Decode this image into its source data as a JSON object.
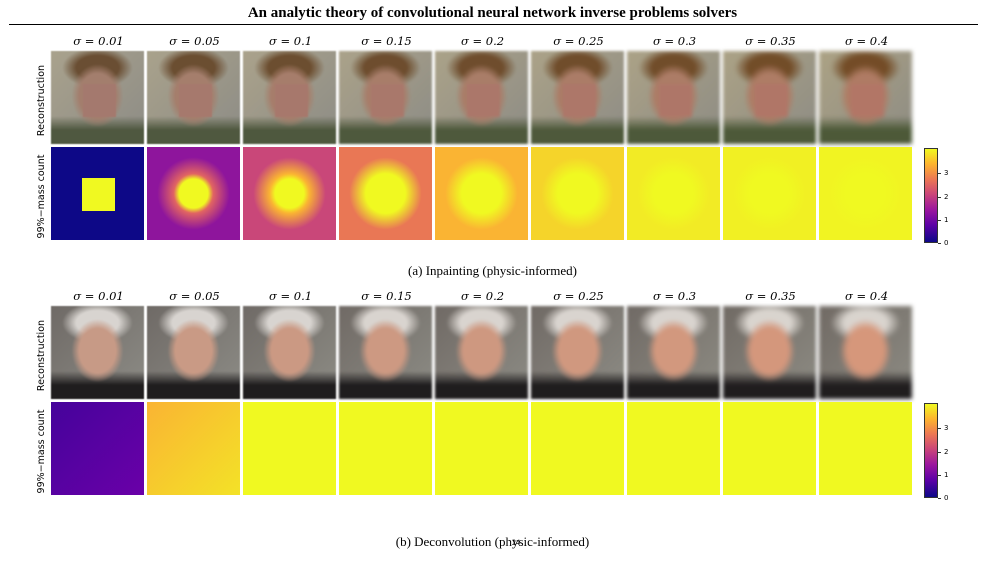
{
  "paper": {
    "title": "An analytic theory of convolutional neural network inverse problems solvers",
    "page_number": "24"
  },
  "figures": [
    {
      "id": "a",
      "caption": "(a) Inpainting (physic-informed)",
      "sigmas": [
        "σ = 0.01",
        "σ = 0.05",
        "σ = 0.1",
        "σ = 0.15",
        "σ = 0.2",
        "σ = 0.25",
        "σ = 0.3",
        "σ = 0.35",
        "σ = 0.4"
      ],
      "row_labels": {
        "reconstruction": "Reconstruction",
        "mass": "99%−mass count"
      },
      "colorbar_ticks": [
        "3",
        "2",
        "1",
        "0"
      ],
      "image_description_note": "",
      "recon_palette": {
        "skin": "#a37e6d",
        "hair": "#6a4e33",
        "background": "#a9a28d",
        "lower": "#4f5840",
        "mask": "#a4796e"
      },
      "mass_levels": [
        0.0,
        0.35,
        0.55,
        0.7,
        0.85,
        0.92,
        0.97,
        0.98,
        0.99
      ]
    },
    {
      "id": "b",
      "caption": "(b) Deconvolution (physic-informed)",
      "sigmas": [
        "σ = 0.01",
        "σ = 0.05",
        "σ = 0.1",
        "σ = 0.15",
        "σ = 0.2",
        "σ = 0.25",
        "σ = 0.3",
        "σ = 0.35",
        "σ = 0.4"
      ],
      "row_labels": {
        "reconstruction": "Reconstruction",
        "mass": "99%−mass count"
      },
      "colorbar_ticks": [
        "3",
        "2",
        "1",
        "0"
      ],
      "recon_palette": {
        "skin": "#c79a86",
        "hair": "#d8d4d0",
        "background": "#6f6a66",
        "lower": "#1f1d1e",
        "mask": ""
      },
      "mass_levels": [
        0.15,
        0.85,
        1.0,
        1.0,
        1.0,
        1.0,
        1.0,
        1.0,
        1.0
      ]
    }
  ],
  "colors": {
    "cmap_low": "#0d0887",
    "cmap_mid": "#cc4778",
    "cmap_high": "#f0f921"
  }
}
